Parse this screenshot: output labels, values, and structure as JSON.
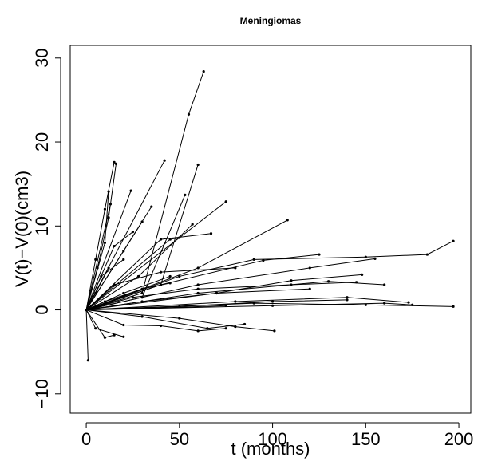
{
  "chart_data": {
    "type": "line",
    "title": "Meningiomas",
    "x_label": "t (months)",
    "y_label": "V(t)−V(0)(cm3)",
    "color": "#000000",
    "xlim": [
      -8.6,
      206.4
    ],
    "ylim": [
      -12.3,
      31.5
    ],
    "xticks": [
      0,
      50,
      100,
      150,
      200
    ],
    "yticks": [
      {
        "value": -10,
        "label": "−10"
      },
      0,
      10,
      20,
      30
    ],
    "series": [
      {
        "x": [
          0,
          5,
          10,
          15
        ],
        "values": [
          0,
          6,
          12,
          17.6
        ]
      },
      {
        "x": [
          0,
          6,
          12,
          16
        ],
        "values": [
          0,
          5,
          11,
          17.4
        ]
      },
      {
        "x": [
          0,
          10,
          12
        ],
        "values": [
          0,
          8,
          14.1
        ]
      },
      {
        "x": [
          0,
          13
        ],
        "values": [
          0,
          12.6
        ]
      },
      {
        "x": [
          0,
          24
        ],
        "values": [
          0,
          14.2
        ]
      },
      {
        "x": [
          0,
          42
        ],
        "values": [
          0,
          17.8
        ]
      },
      {
        "x": [
          0,
          30,
          55,
          63
        ],
        "values": [
          0,
          2,
          23.3,
          28.4
        ]
      },
      {
        "x": [
          0,
          40,
          60
        ],
        "values": [
          0,
          3,
          17.3
        ]
      },
      {
        "x": [
          0,
          30,
          53
        ],
        "values": [
          0,
          1.5,
          13.7
        ]
      },
      {
        "x": [
          0,
          75
        ],
        "values": [
          0,
          12.9
        ]
      },
      {
        "x": [
          0,
          35
        ],
        "values": [
          0,
          12.3
        ]
      },
      {
        "x": [
          0,
          28,
          57
        ],
        "values": [
          0,
          4,
          10.2
        ]
      },
      {
        "x": [
          0,
          60,
          108
        ],
        "values": [
          0,
          5,
          10.7
        ]
      },
      {
        "x": [
          0,
          40,
          67
        ],
        "values": [
          0,
          8.4,
          9.1
        ]
      },
      {
        "x": [
          0,
          45,
          50
        ],
        "values": [
          0,
          8.4,
          8.6
        ]
      },
      {
        "x": [
          0,
          20,
          30
        ],
        "values": [
          0,
          7,
          10.5
        ]
      },
      {
        "x": [
          0,
          15,
          25
        ],
        "values": [
          0,
          7.6,
          9.3
        ]
      },
      {
        "x": [
          0,
          50,
          90,
          150,
          183,
          197
        ],
        "values": [
          0,
          4,
          6,
          6.3,
          6.6,
          8.2
        ]
      },
      {
        "x": [
          0,
          60,
          120,
          155
        ],
        "values": [
          0,
          3,
          5,
          6.1
        ]
      },
      {
        "x": [
          0,
          40,
          95,
          125
        ],
        "values": [
          0,
          3,
          5.9,
          6.6
        ]
      },
      {
        "x": [
          0,
          70,
          110,
          148
        ],
        "values": [
          0,
          2,
          3.5,
          4.2
        ]
      },
      {
        "x": [
          0,
          80,
          140,
          173
        ],
        "values": [
          0,
          1,
          1.5,
          0.9
        ]
      },
      {
        "x": [
          0,
          90,
          150,
          197
        ],
        "values": [
          0,
          0.8,
          0.6,
          0.4
        ]
      },
      {
        "x": [
          0,
          100,
          160,
          175
        ],
        "values": [
          0,
          0.5,
          0.8,
          0.6
        ]
      },
      {
        "x": [
          0,
          1
        ],
        "values": [
          0,
          -6
        ]
      },
      {
        "x": [
          0,
          10,
          15
        ],
        "values": [
          0,
          -3.3,
          -3
        ]
      },
      {
        "x": [
          0,
          20,
          40,
          60,
          75
        ],
        "values": [
          0,
          -1.8,
          -1.9,
          -2.5,
          -2.2
        ]
      },
      {
        "x": [
          0,
          50,
          80,
          101
        ],
        "values": [
          0,
          -1,
          -2,
          -2.5
        ]
      },
      {
        "x": [
          0,
          30,
          65,
          85
        ],
        "values": [
          0,
          -0.8,
          -2.2,
          -1.7
        ]
      },
      {
        "x": [
          0,
          5,
          20
        ],
        "values": [
          0,
          -2.2,
          -3.2
        ]
      },
      {
        "x": [
          0,
          60,
          130,
          160
        ],
        "values": [
          0,
          2,
          3.4,
          3
        ]
      },
      {
        "x": [
          0,
          30,
          70,
          120
        ],
        "values": [
          0,
          1,
          2,
          2.5
        ]
      },
      {
        "x": [
          0,
          25,
          60,
          110,
          145
        ],
        "values": [
          0,
          1.5,
          2.5,
          3,
          3.3
        ]
      },
      {
        "x": [
          0,
          15,
          40,
          80
        ],
        "values": [
          0,
          3,
          4.5,
          5
        ]
      },
      {
        "x": [
          0,
          8,
          20
        ],
        "values": [
          0,
          4,
          6
        ]
      },
      {
        "x": [
          0,
          20,
          45
        ],
        "values": [
          0,
          2,
          4
        ]
      },
      {
        "x": [
          0,
          50,
          100,
          140
        ],
        "values": [
          0,
          0.4,
          1,
          1.2
        ]
      },
      {
        "x": [
          0,
          35,
          75
        ],
        "values": [
          0,
          0.2,
          0.5
        ]
      },
      {
        "x": [
          0,
          10,
          30,
          45
        ],
        "values": [
          0,
          1,
          2.5,
          3.2
        ]
      },
      {
        "x": [
          0,
          5,
          12
        ],
        "values": [
          0,
          2,
          5
        ]
      }
    ]
  }
}
